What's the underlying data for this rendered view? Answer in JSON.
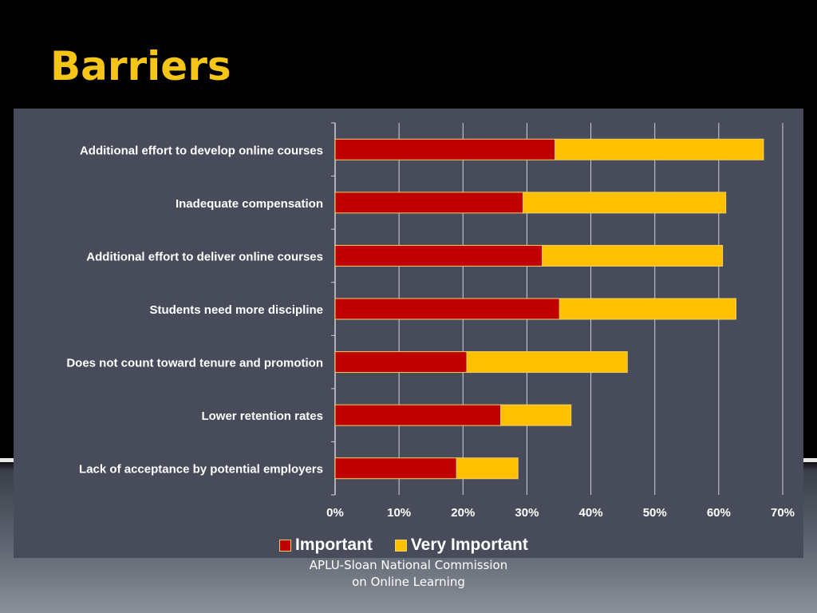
{
  "slide": {
    "title": "Barriers",
    "footer_line1": "APLU-Sloan National Commission",
    "footer_line2": "on Online Learning"
  },
  "colors": {
    "important": "#c00000",
    "very_important": "#ffc000",
    "panel": "#474b5a",
    "title": "#f5c518"
  },
  "chart_data": {
    "type": "bar",
    "orientation": "horizontal",
    "stacked": true,
    "categories": [
      "Additional effort to develop online courses",
      "Inadequate compensation",
      "Additional effort to deliver online courses",
      "Students need more discipline",
      "Does not count toward tenure and promotion",
      "Lower retention rates",
      "Lack of acceptance by potential employers"
    ],
    "series": [
      {
        "name": "Important",
        "values": [
          34.4,
          29.4,
          32.4,
          35.1,
          20.6,
          25.9,
          19.0
        ]
      },
      {
        "name": "Very Important",
        "values": [
          32.6,
          31.7,
          28.2,
          27.6,
          25.1,
          11.0,
          9.6
        ]
      }
    ],
    "xlim": [
      0,
      70
    ],
    "xticks": [
      "0%",
      "10%",
      "20%",
      "30%",
      "40%",
      "50%",
      "60%",
      "70%"
    ],
    "grid": true,
    "legend": "bottom"
  }
}
